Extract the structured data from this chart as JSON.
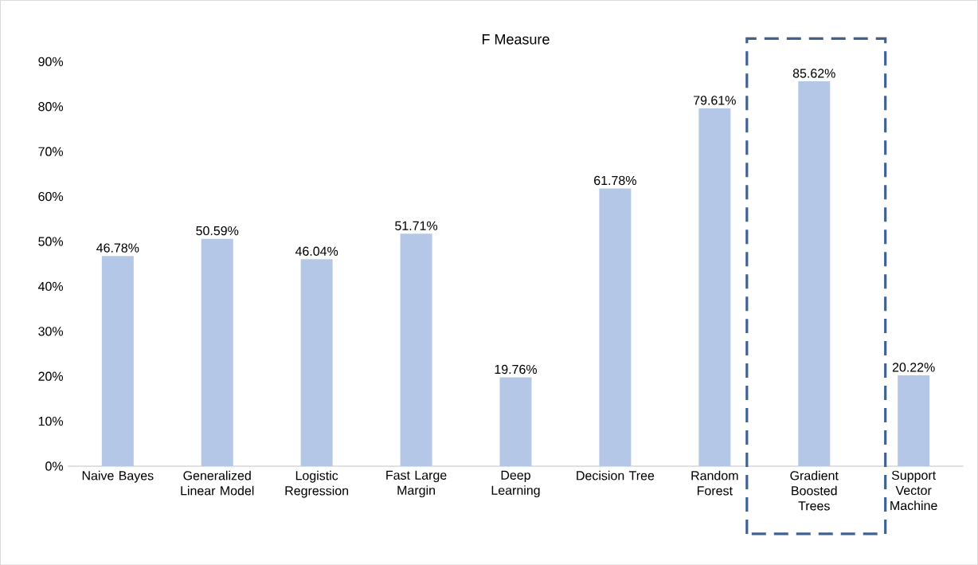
{
  "chart_data": {
    "type": "bar",
    "title": "F Measure",
    "categories": [
      "Naive Bayes",
      "Generalized Linear Model",
      "Logistic Regression",
      "Fast Large Margin",
      "Deep Learning",
      "Decision Tree",
      "Random Forest",
      "Gradient Boosted Trees",
      "Support Vector Machine"
    ],
    "values": [
      46.78,
      50.59,
      46.04,
      51.71,
      19.76,
      61.78,
      79.61,
      85.62,
      20.22
    ],
    "value_labels": [
      "46.78%",
      "50.59%",
      "46.04%",
      "51.71%",
      "19.76%",
      "61.78%",
      "79.61%",
      "85.62%",
      "20.22%"
    ],
    "color": "#b4c7e7",
    "ylim": [
      0,
      90
    ],
    "yticks": [
      {
        "value": 0,
        "label": "0%"
      },
      {
        "value": 10,
        "label": "10%"
      },
      {
        "value": 20,
        "label": "20%"
      },
      {
        "value": 30,
        "label": "30%"
      },
      {
        "value": 40,
        "label": "40%"
      },
      {
        "value": 50,
        "label": "50%"
      },
      {
        "value": 60,
        "label": "60%"
      },
      {
        "value": 70,
        "label": "70%"
      },
      {
        "value": 80,
        "label": "80%"
      },
      {
        "value": 90,
        "label": "90%"
      }
    ],
    "grid": false
  }
}
